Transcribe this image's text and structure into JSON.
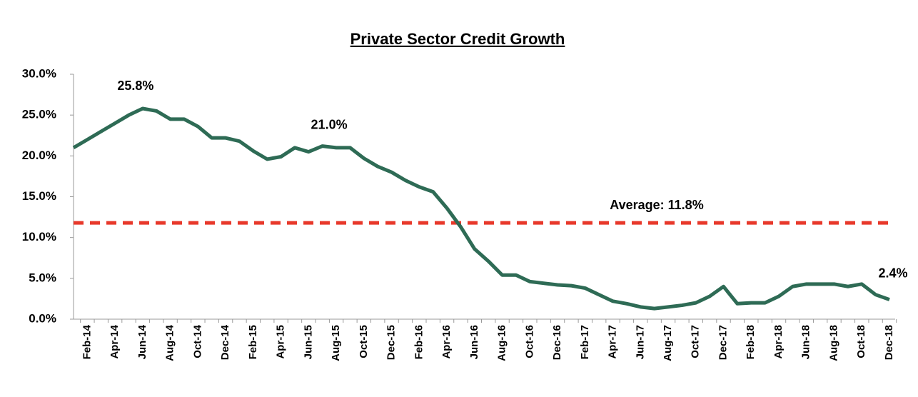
{
  "chart_data": {
    "type": "line",
    "title": "Private Sector Credit Growth",
    "categories": [
      null,
      "Feb-14",
      null,
      "Apr-14",
      null,
      "Jun-14",
      null,
      "Aug-14",
      null,
      "Oct-14",
      null,
      "Dec-14",
      null,
      "Feb-15",
      null,
      "Apr-15",
      null,
      "Jun-15",
      null,
      "Aug-15",
      null,
      "Oct-15",
      null,
      "Dec-15",
      null,
      "Feb-16",
      null,
      "Apr-16",
      null,
      "Jun-16",
      null,
      "Aug-16",
      null,
      "Oct-16",
      null,
      "Dec-16",
      null,
      "Feb-17",
      null,
      "Apr-17",
      null,
      "Jun-17",
      null,
      "Aug-17",
      null,
      "Oct-17",
      null,
      "Dec-17",
      null,
      "Feb-18",
      null,
      "Apr-18",
      null,
      "Jun-18",
      null,
      "Aug-18",
      null,
      "Oct-18",
      null,
      "Dec-18"
    ],
    "series": [
      {
        "name": "Private Sector Credit Growth",
        "color": "#2e6b55",
        "values": [
          21.0,
          22.0,
          23.0,
          24.0,
          25.0,
          25.8,
          25.5,
          24.5,
          24.5,
          23.6,
          22.2,
          22.2,
          21.8,
          20.6,
          19.6,
          19.9,
          21.0,
          20.5,
          21.2,
          21.0,
          21.0,
          19.7,
          18.7,
          18.0,
          17.0,
          16.2,
          15.6,
          13.6,
          11.3,
          8.6,
          7.1,
          5.4,
          5.4,
          4.6,
          4.4,
          4.2,
          4.1,
          3.8,
          3.0,
          2.2,
          1.9,
          1.5,
          1.3,
          1.5,
          1.7,
          2.0,
          2.8,
          4.0,
          1.9,
          2.0,
          2.0,
          2.8,
          4.0,
          4.3,
          4.3,
          4.3,
          4.0,
          4.3,
          3.0,
          2.4
        ],
        "value_labels": [
          null,
          null,
          null,
          null,
          null,
          "25.8%",
          null,
          null,
          null,
          null,
          null,
          null,
          null,
          null,
          null,
          null,
          null,
          null,
          null,
          "21.0%",
          null,
          null,
          null,
          null,
          null,
          null,
          null,
          null,
          null,
          null,
          null,
          null,
          null,
          null,
          null,
          null,
          null,
          null,
          null,
          null,
          null,
          null,
          null,
          null,
          null,
          null,
          null,
          null,
          null,
          null,
          null,
          null,
          null,
          null,
          null,
          null,
          null,
          null,
          null,
          "2.4%"
        ]
      }
    ],
    "average": {
      "value": 11.8,
      "label": "Average: 11.8%",
      "color": "#e8392b"
    },
    "ylim": [
      0,
      30
    ],
    "yticks": [
      {
        "value": 0,
        "label": "0.0%"
      },
      {
        "value": 5,
        "label": "5.0%"
      },
      {
        "value": 10,
        "label": "10.0%"
      },
      {
        "value": 15,
        "label": "15.0%"
      },
      {
        "value": 20,
        "label": "20.0%"
      },
      {
        "value": 25,
        "label": "25.0%"
      },
      {
        "value": 30,
        "label": "30.0%"
      }
    ],
    "grid": false
  }
}
